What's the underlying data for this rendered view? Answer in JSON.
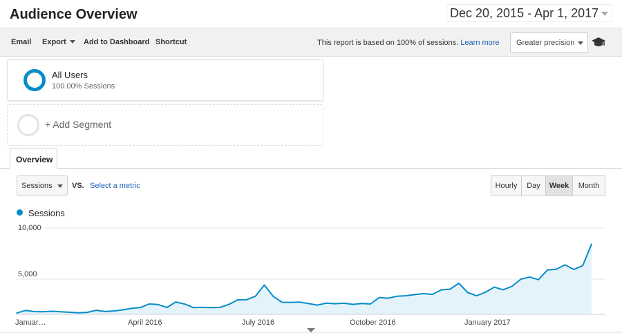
{
  "header": {
    "title": "Audience Overview",
    "date_range": "Dec 20, 2015 - Apr 1, 2017"
  },
  "toolbar": {
    "email": "Email",
    "export": "Export",
    "add_to_dashboard": "Add to Dashboard",
    "shortcut": "Shortcut",
    "sampling_note": "This report is based on 100% of sessions.",
    "learn_more": "Learn more",
    "precision": "Greater precision"
  },
  "segments": {
    "active_name": "All Users",
    "active_sub": "100.00% Sessions",
    "add_label": "+ Add Segment"
  },
  "tabs": {
    "overview": "Overview"
  },
  "controls": {
    "metric": "Sessions",
    "vs": "VS.",
    "select_metric": "Select a metric",
    "granularity": [
      "Hourly",
      "Day",
      "Week",
      "Month"
    ],
    "active_granularity": "Week"
  },
  "colors": {
    "series": "#058dc7",
    "fill": "#e4f3fa",
    "accent_link": "#1a62b8"
  },
  "icons": {
    "date_caret": "chevron-down-icon",
    "segment": "donut-icon",
    "precision": "graduation-cap-icon"
  },
  "chart_data": {
    "type": "area",
    "title": "",
    "xlabel": "",
    "ylabel": "",
    "series": [
      {
        "name": "Sessions",
        "values": [
          150,
          450,
          320,
          300,
          360,
          300,
          240,
          180,
          230,
          470,
          330,
          390,
          520,
          700,
          790,
          1200,
          1140,
          800,
          1430,
          1190,
          780,
          810,
          780,
          800,
          1150,
          1680,
          1700,
          2100,
          3400,
          2100,
          1400,
          1380,
          1420,
          1250,
          1070,
          1300,
          1230,
          1290,
          1150,
          1260,
          1200,
          1950,
          1870,
          2100,
          2150,
          2290,
          2400,
          2310,
          2830,
          2920,
          3600,
          2520,
          2150,
          2560,
          3150,
          2850,
          3250,
          4070,
          4310,
          4020,
          5130,
          5230,
          5730,
          5200,
          5650,
          8150
        ]
      }
    ],
    "y_ticks": [
      "10,000",
      "5,000"
    ],
    "ylim": [
      0,
      10000
    ],
    "x_ticks": [
      "Januar…",
      "April 2016",
      "July 2016",
      "October 2016",
      "January 2017"
    ],
    "grid": true,
    "legend": "top-left"
  }
}
